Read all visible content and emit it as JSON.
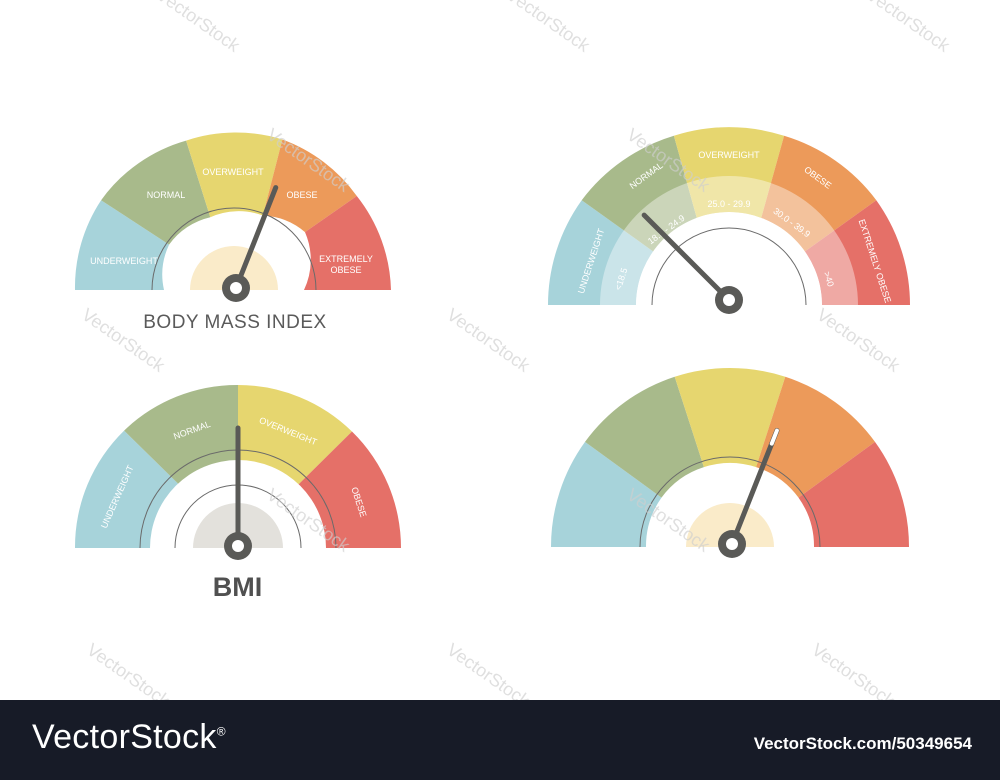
{
  "colors": {
    "underweight": "#a7d3da",
    "normal": "#a8ba8b",
    "overweight": "#e6d66f",
    "obese": "#ec9a5a",
    "extremely_obese": "#e57068",
    "needle": "#5a5a57",
    "center_light": "#faebc9",
    "center_grey": "#e3e1dc",
    "footer": "#171b27"
  },
  "gauge1": {
    "labels": [
      "UNDERWEIGHT",
      "NORMAL",
      "OVERWEIGHT",
      "OBESE",
      "EXTREMELY",
      "OBESE"
    ],
    "caption": "BODY MASS INDEX",
    "needle_fraction": 0.62
  },
  "gauge2": {
    "labels": [
      "UNDERWEIGHT",
      "NORMAL",
      "OVERWEIGHT",
      "OBESE",
      "EXTREMELY OBESE"
    ],
    "ranges": [
      "<18.5",
      "18.5 - 24.9",
      "25.0 - 29.9",
      "30.0 - 39.9",
      ">40"
    ],
    "needle_fraction": 0.25
  },
  "gauge3": {
    "labels": [
      "UNDERWEIGHT",
      "NORMAL",
      "OVERWEIGHT",
      "OBESE"
    ],
    "caption": "BMI",
    "needle_fraction": 0.5
  },
  "gauge4": {
    "needle_fraction": 0.62
  },
  "watermark": "VectorStock",
  "footer": {
    "brand": "VectorStock",
    "registered": "®",
    "image_id": "VectorStock.com/50349654"
  }
}
